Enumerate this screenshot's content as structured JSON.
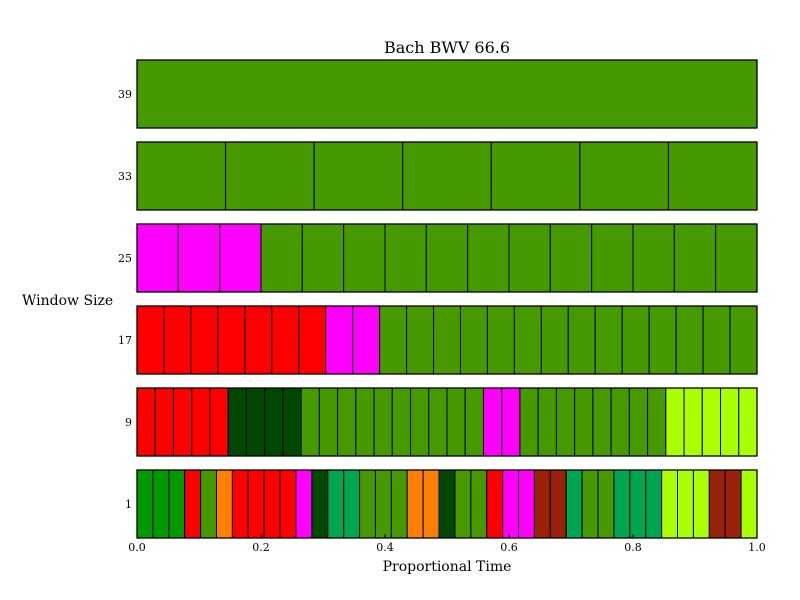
{
  "chart_data": {
    "type": "heatmap",
    "title": "Bach BWV 66.6",
    "xlabel": "Proportional Time",
    "ylabel": "Window Size",
    "xlim": [
      0.0,
      1.0
    ],
    "xticks": [
      "0.0",
      "0.2",
      "0.4",
      "0.6",
      "0.8",
      "1.0"
    ],
    "legend": "none",
    "grid": false,
    "palette": {
      "green": "#479900",
      "magenta": "#ff00ff",
      "red": "#ff0000",
      "dark_green": "#004700",
      "lime": "#aaff00",
      "bright_green": "#009900",
      "orange": "#ff7f00",
      "teal": "#00a550",
      "brown": "#99220b"
    },
    "rows": [
      {
        "window": "39",
        "segments": [
          "green"
        ]
      },
      {
        "window": "33",
        "segments": [
          "green",
          "green",
          "green",
          "green",
          "green",
          "green",
          "green"
        ]
      },
      {
        "window": "25",
        "segments": [
          "magenta",
          "magenta",
          "magenta",
          "green",
          "green",
          "green",
          "green",
          "green",
          "green",
          "green",
          "green",
          "green",
          "green",
          "green",
          "green"
        ]
      },
      {
        "window": "17",
        "segments": [
          "red",
          "red",
          "red",
          "red",
          "red",
          "red",
          "red",
          "magenta",
          "magenta",
          "green",
          "green",
          "green",
          "green",
          "green",
          "green",
          "green",
          "green",
          "green",
          "green",
          "green",
          "green",
          "green",
          "green"
        ]
      },
      {
        "window": "9",
        "segments": [
          "red",
          "red",
          "red",
          "red",
          "red",
          "dark_green",
          "dark_green",
          "dark_green",
          "dark_green",
          "green",
          "green",
          "green",
          "green",
          "green",
          "green",
          "green",
          "green",
          "green",
          "green",
          "magenta",
          "magenta",
          "green",
          "green",
          "green",
          "green",
          "green",
          "green",
          "green",
          "green",
          "lime",
          "lime",
          "lime",
          "lime",
          "lime"
        ]
      },
      {
        "window": "1",
        "segments": [
          "bright_green",
          "bright_green",
          "bright_green",
          "red",
          "green",
          "orange",
          "red",
          "red",
          "red",
          "red",
          "magenta",
          "dark_green",
          "teal",
          "teal",
          "green",
          "green",
          "green",
          "orange",
          "orange",
          "dark_green",
          "green",
          "green",
          "red",
          "magenta",
          "magenta",
          "brown",
          "brown",
          "teal",
          "green",
          "green",
          "teal",
          "teal",
          "teal",
          "lime",
          "lime",
          "lime",
          "brown",
          "brown",
          "lime"
        ]
      }
    ]
  }
}
